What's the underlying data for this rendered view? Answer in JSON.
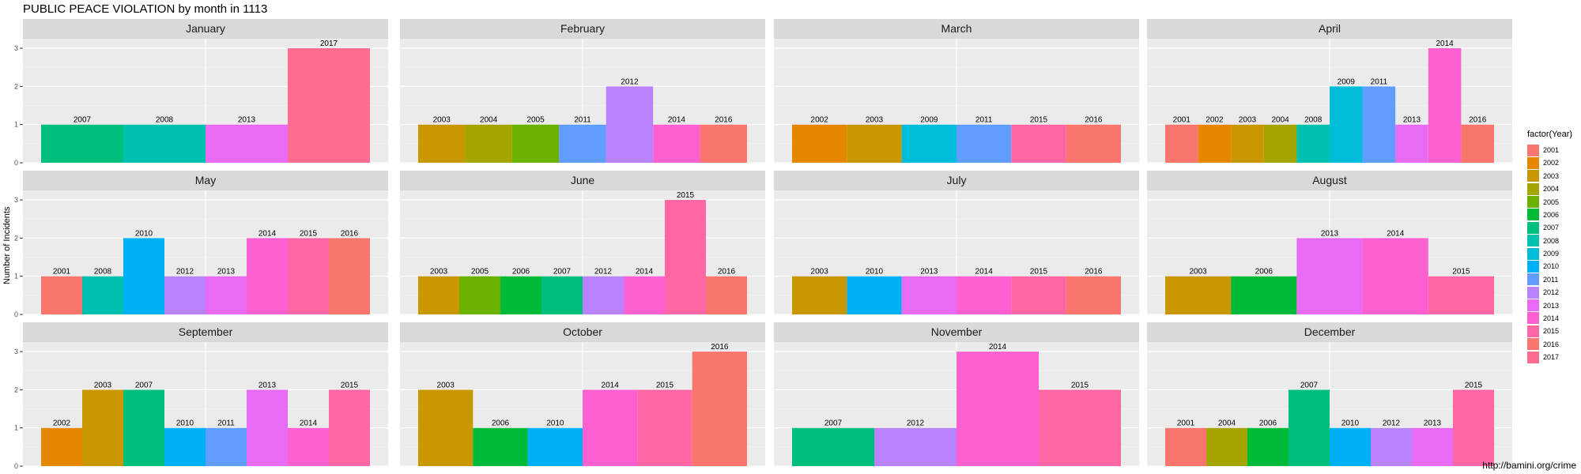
{
  "chart_title": "PUBLIC PEACE VIOLATION by month in 1113",
  "caption": "http://bamini.org/crime",
  "colors": {
    "2001": "#F8766D",
    "2002": "#E58700",
    "2003": "#C99800",
    "2004": "#A3A500",
    "2005": "#6BB100",
    "2006": "#00BA38",
    "2007": "#00BF7D",
    "2008": "#00C0AF",
    "2009": "#00BCD8",
    "2010": "#00B0F6",
    "2011": "#619CFF",
    "2012": "#B983FF",
    "2013": "#E76BF3",
    "2014": "#FD61D1",
    "2015": "#FF67A4",
    "2016": "#F8766D",
    "2017": "#FF6C91"
  },
  "chart_data": {
    "type": "bar",
    "title": "PUBLIC PEACE VIOLATION by month in 1113",
    "xlabel": "",
    "ylabel": "Number of Incidents",
    "ylim": [
      0,
      3.25
    ],
    "yticks": [
      "0",
      "1",
      "2",
      "3"
    ],
    "grid": true,
    "legend": {
      "title": "factor(Year)",
      "position": "right",
      "entries": [
        "2001",
        "2002",
        "2003",
        "2004",
        "2005",
        "2006",
        "2007",
        "2008",
        "2009",
        "2010",
        "2011",
        "2012",
        "2013",
        "2014",
        "2015",
        "2016",
        "2017"
      ]
    },
    "facets": [
      {
        "name": "January",
        "bars": [
          {
            "year": "2007",
            "value": 1
          },
          {
            "year": "2008",
            "value": 1
          },
          {
            "year": "2013",
            "value": 1
          },
          {
            "year": "2017",
            "value": 3
          }
        ]
      },
      {
        "name": "February",
        "bars": [
          {
            "year": "2003",
            "value": 1
          },
          {
            "year": "2004",
            "value": 1
          },
          {
            "year": "2005",
            "value": 1
          },
          {
            "year": "2011",
            "value": 1
          },
          {
            "year": "2012",
            "value": 2
          },
          {
            "year": "2014",
            "value": 1
          },
          {
            "year": "2016",
            "value": 1
          }
        ]
      },
      {
        "name": "March",
        "bars": [
          {
            "year": "2002",
            "value": 1
          },
          {
            "year": "2003",
            "value": 1
          },
          {
            "year": "2009",
            "value": 1
          },
          {
            "year": "2011",
            "value": 1
          },
          {
            "year": "2015",
            "value": 1
          },
          {
            "year": "2016",
            "value": 1
          }
        ]
      },
      {
        "name": "April",
        "bars": [
          {
            "year": "2001",
            "value": 1
          },
          {
            "year": "2002",
            "value": 1
          },
          {
            "year": "2003",
            "value": 1
          },
          {
            "year": "2004",
            "value": 1
          },
          {
            "year": "2008",
            "value": 1
          },
          {
            "year": "2009",
            "value": 2
          },
          {
            "year": "2011",
            "value": 2
          },
          {
            "year": "2013",
            "value": 1
          },
          {
            "year": "2014",
            "value": 3
          },
          {
            "year": "2016",
            "value": 1
          }
        ]
      },
      {
        "name": "May",
        "bars": [
          {
            "year": "2001",
            "value": 1
          },
          {
            "year": "2008",
            "value": 1
          },
          {
            "year": "2010",
            "value": 2
          },
          {
            "year": "2012",
            "value": 1
          },
          {
            "year": "2013",
            "value": 1
          },
          {
            "year": "2014",
            "value": 2
          },
          {
            "year": "2015",
            "value": 2
          },
          {
            "year": "2016",
            "value": 2
          }
        ]
      },
      {
        "name": "June",
        "bars": [
          {
            "year": "2003",
            "value": 1
          },
          {
            "year": "2005",
            "value": 1
          },
          {
            "year": "2006",
            "value": 1
          },
          {
            "year": "2007",
            "value": 1
          },
          {
            "year": "2012",
            "value": 1
          },
          {
            "year": "2014",
            "value": 1
          },
          {
            "year": "2015",
            "value": 3
          },
          {
            "year": "2016",
            "value": 1
          }
        ]
      },
      {
        "name": "July",
        "bars": [
          {
            "year": "2003",
            "value": 1
          },
          {
            "year": "2010",
            "value": 1
          },
          {
            "year": "2013",
            "value": 1
          },
          {
            "year": "2014",
            "value": 1
          },
          {
            "year": "2015",
            "value": 1
          },
          {
            "year": "2016",
            "value": 1
          }
        ]
      },
      {
        "name": "August",
        "bars": [
          {
            "year": "2003",
            "value": 1
          },
          {
            "year": "2006",
            "value": 1
          },
          {
            "year": "2013",
            "value": 2
          },
          {
            "year": "2014",
            "value": 2
          },
          {
            "year": "2015",
            "value": 1
          }
        ]
      },
      {
        "name": "September",
        "bars": [
          {
            "year": "2002",
            "value": 1
          },
          {
            "year": "2003",
            "value": 2
          },
          {
            "year": "2007",
            "value": 2
          },
          {
            "year": "2010",
            "value": 1
          },
          {
            "year": "2011",
            "value": 1
          },
          {
            "year": "2013",
            "value": 2
          },
          {
            "year": "2014",
            "value": 1
          },
          {
            "year": "2015",
            "value": 2
          }
        ]
      },
      {
        "name": "October",
        "bars": [
          {
            "year": "2003",
            "value": 2
          },
          {
            "year": "2006",
            "value": 1
          },
          {
            "year": "2010",
            "value": 1
          },
          {
            "year": "2014",
            "value": 2
          },
          {
            "year": "2015",
            "value": 2
          },
          {
            "year": "2016",
            "value": 3
          }
        ]
      },
      {
        "name": "November",
        "bars": [
          {
            "year": "2007",
            "value": 1
          },
          {
            "year": "2012",
            "value": 1
          },
          {
            "year": "2014",
            "value": 3
          },
          {
            "year": "2015",
            "value": 2
          }
        ]
      },
      {
        "name": "December",
        "bars": [
          {
            "year": "2001",
            "value": 1
          },
          {
            "year": "2004",
            "value": 1
          },
          {
            "year": "2006",
            "value": 1
          },
          {
            "year": "2007",
            "value": 2
          },
          {
            "year": "2010",
            "value": 1
          },
          {
            "year": "2012",
            "value": 1
          },
          {
            "year": "2013",
            "value": 1
          },
          {
            "year": "2015",
            "value": 2
          }
        ]
      }
    ]
  }
}
